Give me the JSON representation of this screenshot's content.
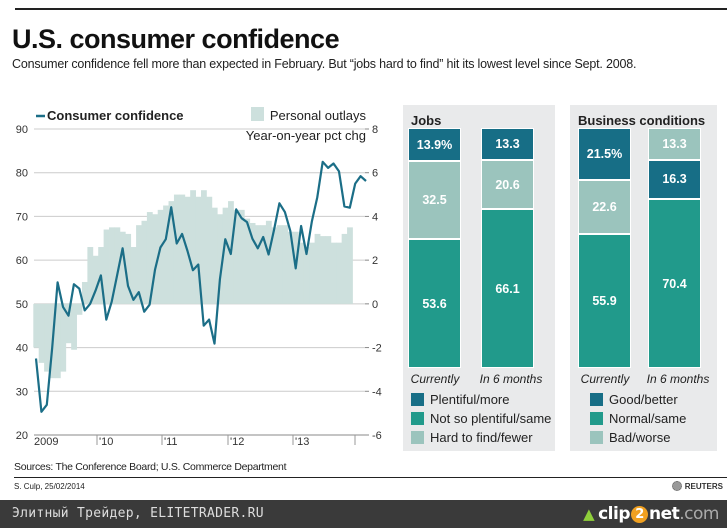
{
  "header": {
    "title": "U.S. consumer confidence",
    "subtitle": "Consumer confidence fell more than expected in February. But “jobs hard to find” hit its lowest level since Sept. 2008."
  },
  "colors": {
    "line": "#1b6e87",
    "bars_area": "#cde0dd",
    "dark_teal": "#176e86",
    "mid_teal": "#219a8b",
    "light_teal": "#9bc4bd",
    "panel_bg": "#e9eaeb",
    "grid": "#cccccc"
  },
  "chart_data": [
    {
      "type": "line+bar",
      "legend": {
        "line_label": "Consumer confidence",
        "bar_label": "Personal outlays",
        "bar_sublabel": "Year-on-year pct chg"
      },
      "left_axis": {
        "ticks": [
          "90",
          "80",
          "70",
          "60",
          "50",
          "40",
          "30",
          "20"
        ],
        "range": [
          20,
          90
        ]
      },
      "right_axis": {
        "ticks": [
          "8",
          "6",
          "4",
          "2",
          "0",
          "-2",
          "-4",
          "-6"
        ],
        "range": [
          -6,
          8
        ]
      },
      "x_ticks": [
        "2009",
        "'10",
        "'11",
        "'12",
        "'13"
      ],
      "x_range": "Jan 2009 - Feb 2014 (monthly)",
      "grid": true,
      "consumer_confidence": [
        37.5,
        25.3,
        26.9,
        40.0,
        54.9,
        49.3,
        47.3,
        54.5,
        53.5,
        48.5,
        50.0,
        53.0,
        56.5,
        46.4,
        50.5,
        56.5,
        62.7,
        54.1,
        50.9,
        52.7,
        48.2,
        49.8,
        57.8,
        62.9,
        64.8,
        72.1,
        63.8,
        66.0,
        62.1,
        57.7,
        59.0,
        45.0,
        46.4,
        40.9,
        55.6,
        64.8,
        61.4,
        71.6,
        69.6,
        68.7,
        64.9,
        62.7,
        65.3,
        61.3,
        66.9,
        73.0,
        71.0,
        66.7,
        58.1,
        67.8,
        61.4,
        68.9,
        74.4,
        82.5,
        81.1,
        82.1,
        80.3,
        72.3,
        72.0,
        77.5,
        79.2,
        78.1
      ],
      "personal_outlays": [
        -2.0,
        -2.7,
        -3.1,
        -3.4,
        -3.4,
        -3.1,
        -1.8,
        -2.1,
        -0.5,
        1.0,
        2.6,
        2.2,
        2.6,
        3.4,
        3.5,
        3.5,
        3.3,
        3.2,
        2.6,
        3.6,
        3.8,
        4.2,
        4.1,
        4.3,
        4.5,
        4.7,
        5.0,
        5.0,
        4.9,
        5.2,
        4.9,
        5.2,
        4.9,
        4.4,
        4.1,
        4.4,
        4.7,
        4.3,
        4.3,
        3.9,
        3.7,
        3.6,
        3.6,
        3.8,
        3.5,
        3.6,
        3.6,
        3.3,
        3.3,
        2.8,
        2.6,
        2.8,
        3.2,
        3.1,
        3.1,
        2.8,
        2.8,
        3.2,
        3.5
      ]
    },
    {
      "type": "bar",
      "stacked": true,
      "title": "Jobs",
      "categories": [
        "Currently",
        "In 6 months"
      ],
      "series": [
        {
          "name": "Plentiful/more",
          "values": [
            13.9,
            13.3
          ],
          "labels": [
            "13.9%",
            "13.3"
          ],
          "color": "#176e86"
        },
        {
          "name": "Hard to find/fewer",
          "values": [
            32.5,
            20.6
          ],
          "labels": [
            "32.5",
            "20.6"
          ],
          "color": "#9bc4bd"
        },
        {
          "name": "Not so plentiful/same",
          "values": [
            53.6,
            66.1
          ],
          "labels": [
            "53.6",
            "66.1"
          ],
          "color": "#219a8b"
        }
      ],
      "legend_order": [
        "Plentiful/more",
        "Not so plentiful/same",
        "Hard to find/fewer"
      ]
    },
    {
      "type": "bar",
      "stacked": true,
      "title": "Business conditions",
      "categories": [
        "Currently",
        "In 6 months"
      ],
      "stacks": [
        [
          {
            "name": "Good/better",
            "value": 21.5,
            "label": "21.5%",
            "color": "#176e86"
          },
          {
            "name": "Bad/worse",
            "value": 22.6,
            "label": "22.6",
            "color": "#9bc4bd"
          },
          {
            "name": "Normal/same",
            "value": 55.9,
            "label": "55.9",
            "color": "#219a8b"
          }
        ],
        [
          {
            "name": "Bad/worse",
            "value": 13.3,
            "label": "13.3",
            "color": "#9bc4bd"
          },
          {
            "name": "Good/better",
            "value": 16.3,
            "label": "16.3",
            "color": "#176e86"
          },
          {
            "name": "Normal/same",
            "value": 70.4,
            "label": "70.4",
            "color": "#219a8b"
          }
        ]
      ],
      "legend_order": [
        "Good/better",
        "Normal/same",
        "Bad/worse"
      ]
    }
  ],
  "footer": {
    "sources": "Sources: The Conference Board; U.S. Commerce Department",
    "credit": "S. Culp, 25/02/2014",
    "brand": "REUTERS"
  },
  "watermark": {
    "text": "Элитный Трейдер, ELITETRADER.RU",
    "logo_pre": "clip",
    "logo_two": "2",
    "logo_post": "net",
    "logo_com": ".com"
  }
}
